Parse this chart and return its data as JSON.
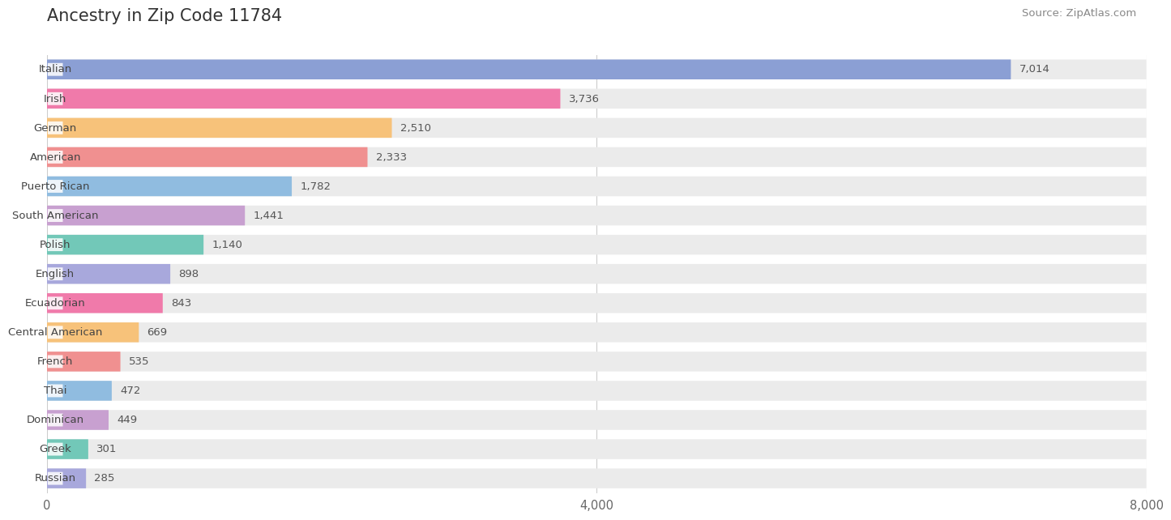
{
  "title": "Ancestry in Zip Code 11784",
  "source": "Source: ZipAtlas.com",
  "categories": [
    "Italian",
    "Irish",
    "German",
    "American",
    "Puerto Rican",
    "South American",
    "Polish",
    "English",
    "Ecuadorian",
    "Central American",
    "French",
    "Thai",
    "Dominican",
    "Greek",
    "Russian"
  ],
  "values": [
    7014,
    3736,
    2510,
    2333,
    1782,
    1441,
    1140,
    898,
    843,
    669,
    535,
    472,
    449,
    301,
    285
  ],
  "colors": [
    "#8b9fd4",
    "#f07aaa",
    "#f7c27a",
    "#f09090",
    "#90bce0",
    "#c8a0d0",
    "#72c8b8",
    "#a8a8dc",
    "#f07aaa",
    "#f7c27a",
    "#f09090",
    "#90bce0",
    "#c8a0d0",
    "#72c8b8",
    "#a8a8dc"
  ],
  "background_color": "#ffffff",
  "bar_bg_color": "#ebebeb",
  "xlim": [
    0,
    8000
  ],
  "xticks": [
    0,
    4000,
    8000
  ],
  "figsize": [
    14.06,
    6.44
  ],
  "dpi": 100
}
